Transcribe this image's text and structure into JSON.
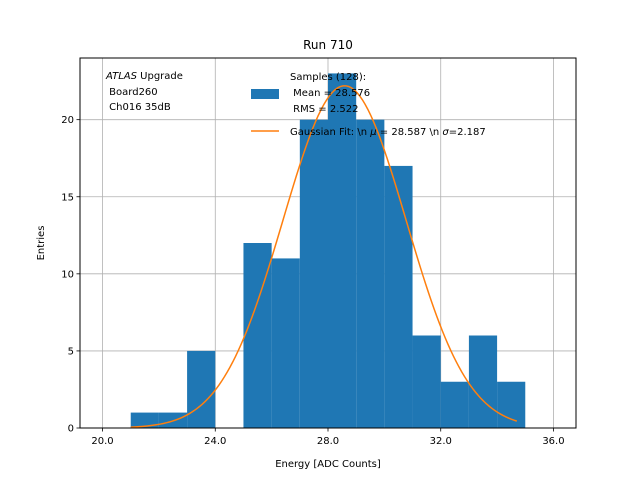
{
  "chart_data": {
    "type": "bar",
    "title": "Run 710",
    "xlabel": "Energy [ADC Counts]",
    "ylabel": "Entries",
    "xlim": [
      19.2,
      36.8
    ],
    "ylim": [
      0,
      24
    ],
    "xticks": [
      20.0,
      24.0,
      28.0,
      32.0,
      36.0
    ],
    "xtick_labels": [
      "20.0",
      "24.0",
      "28.0",
      "32.0",
      "36.0"
    ],
    "yticks": [
      0,
      5,
      10,
      15,
      20
    ],
    "ytick_labels": [
      "0",
      "5",
      "10",
      "15",
      "20"
    ],
    "grid": true,
    "legend_position": "top-right",
    "bin_edges": [
      21.0,
      22.0,
      23.0,
      24.0,
      25.0,
      26.0,
      27.0,
      28.0,
      29.0,
      30.0,
      31.0,
      32.0,
      33.0,
      34.0,
      35.0
    ],
    "series": [
      {
        "name": "Samples (128):\n Mean = 28.576\n RMS = 2.522",
        "type": "histogram",
        "color": "#1f77b4",
        "values": [
          1,
          1,
          5,
          0,
          12,
          11,
          20,
          23,
          20,
          17,
          6,
          3,
          6,
          3
        ]
      },
      {
        "name": "Gaussian Fit: \\n $\\mu$ = 28.587 \\n $\\sigma$=2.187",
        "type": "line",
        "color": "#ff7f0e",
        "function": "gaussian",
        "amplitude": 22.2,
        "mu": 28.587,
        "sigma": 2.187,
        "x_range": [
          21.0,
          34.7
        ]
      }
    ],
    "annotation": {
      "italic": "ATLAS",
      "rest": " Upgrade",
      "lines": [
        " Board260",
        " Ch016 35dB"
      ]
    },
    "legend": {
      "hist_lines": [
        "Samples (128):",
        " Mean = 28.576",
        " RMS = 2.522"
      ],
      "fit_prefix": "Gaussian Fit: \\n ",
      "fit_mu_symbol": "μ",
      "fit_mid": " = 28.587 \\n ",
      "fit_sigma_symbol": "σ",
      "fit_suffix": "=2.187"
    }
  }
}
